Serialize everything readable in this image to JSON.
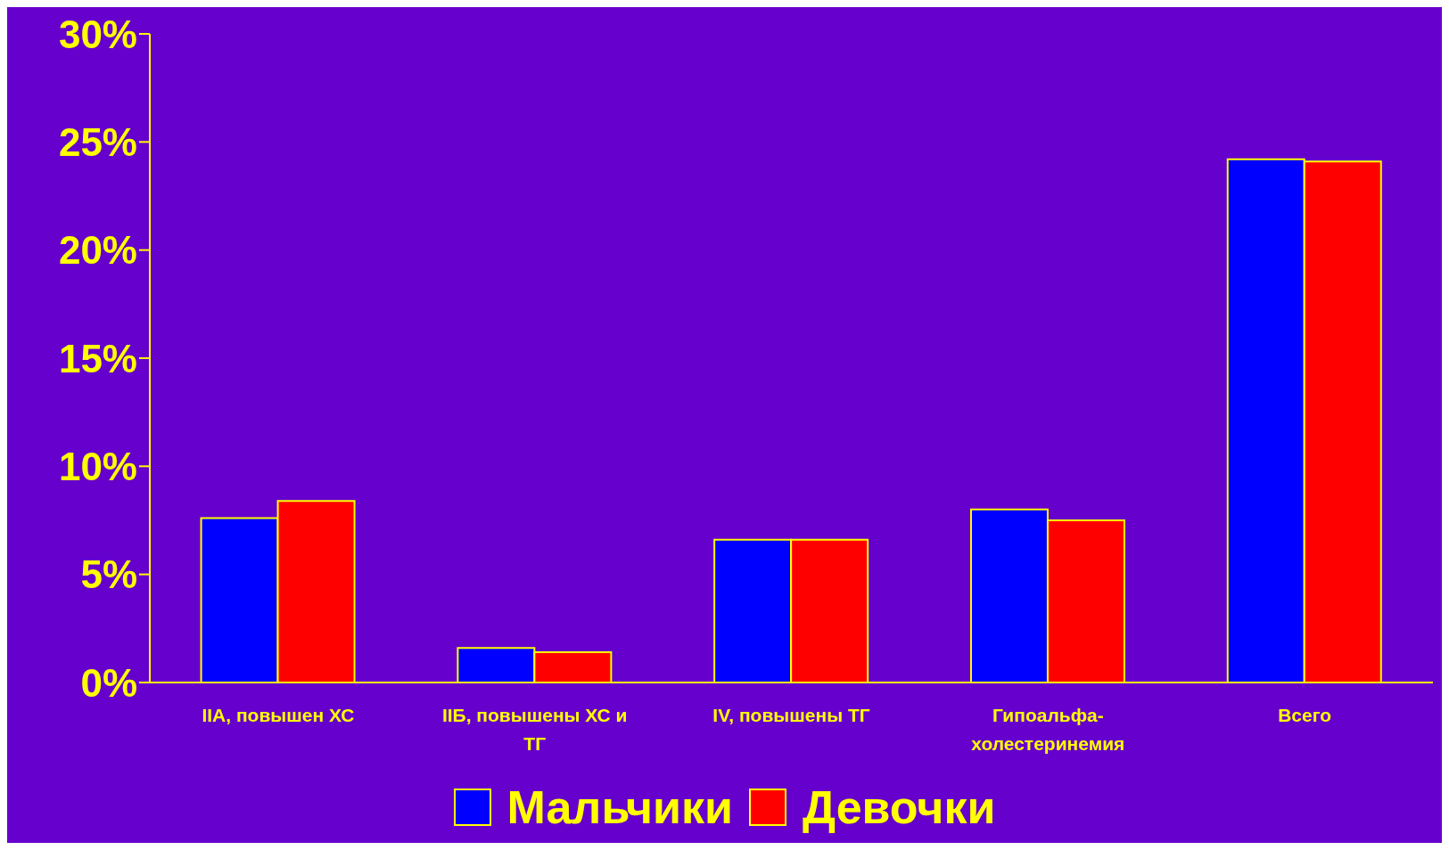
{
  "chart_data": {
    "type": "bar",
    "categories": [
      "IIA, повышен ХС",
      "IIБ, повышены ХС и ТГ",
      "IV, повышены ТГ",
      "Гипоальфа-холестеринемия",
      "Всего"
    ],
    "series": [
      {
        "name": "Мальчики",
        "color": "#0000ff",
        "values": [
          7.6,
          1.6,
          6.6,
          8.0,
          24.2
        ]
      },
      {
        "name": "Девочки",
        "color": "#ff0000",
        "values": [
          8.4,
          1.4,
          6.6,
          7.5,
          24.1
        ]
      }
    ],
    "ylim": [
      0,
      30
    ],
    "yticks": [
      {
        "value": 0,
        "label": "0%"
      },
      {
        "value": 5,
        "label": "5%"
      },
      {
        "value": 10,
        "label": "10%"
      },
      {
        "value": 15,
        "label": "15%"
      },
      {
        "value": 20,
        "label": "20%"
      },
      {
        "value": 25,
        "label": "25%"
      },
      {
        "value": 30,
        "label": "30%"
      }
    ],
    "grid": false,
    "legend": "bottom"
  }
}
